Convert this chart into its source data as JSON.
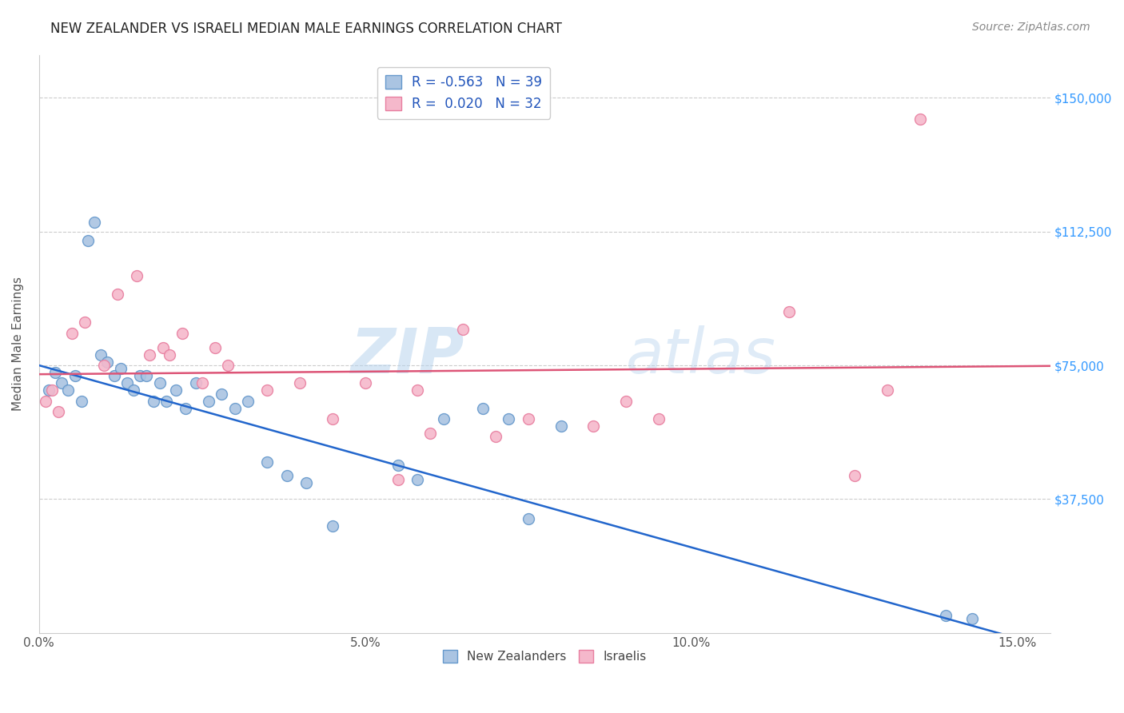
{
  "title": "NEW ZEALANDER VS ISRAELI MEDIAN MALE EARNINGS CORRELATION CHART",
  "source": "Source: ZipAtlas.com",
  "ylabel": "Median Male Earnings",
  "xlabel_vals": [
    0.0,
    5.0,
    10.0,
    15.0
  ],
  "ytick_labels": [
    "$37,500",
    "$75,000",
    "$112,500",
    "$150,000"
  ],
  "ytick_vals": [
    37500,
    75000,
    112500,
    150000
  ],
  "watermark_zip": "ZIP",
  "watermark_atlas": "atlas",
  "nz_color": "#aac4e2",
  "nz_edge": "#6699cc",
  "il_color": "#f5b8cb",
  "il_edge": "#e87fa0",
  "nz_line_color": "#2266cc",
  "il_line_color": "#dd5577",
  "legend_text_color": "#2255bb",
  "nz_x": [
    0.15,
    0.25,
    0.35,
    0.45,
    0.55,
    0.65,
    0.75,
    0.85,
    0.95,
    1.05,
    1.15,
    1.25,
    1.35,
    1.45,
    1.55,
    1.65,
    1.75,
    1.85,
    1.95,
    2.1,
    2.25,
    2.4,
    2.6,
    2.8,
    3.0,
    3.2,
    3.5,
    3.8,
    4.1,
    4.5,
    5.5,
    5.8,
    6.2,
    6.8,
    7.2,
    7.5,
    8.0,
    13.9,
    14.3
  ],
  "nz_y": [
    68000,
    73000,
    70000,
    68000,
    72000,
    65000,
    110000,
    115000,
    78000,
    76000,
    72000,
    74000,
    70000,
    68000,
    72000,
    72000,
    65000,
    70000,
    65000,
    68000,
    63000,
    70000,
    65000,
    67000,
    63000,
    65000,
    48000,
    44000,
    42000,
    30000,
    47000,
    43000,
    60000,
    63000,
    60000,
    32000,
    58000,
    5000,
    4000
  ],
  "il_x": [
    0.1,
    0.2,
    0.3,
    0.5,
    0.7,
    1.0,
    1.2,
    1.5,
    1.7,
    1.9,
    2.0,
    2.2,
    2.5,
    2.7,
    2.9,
    3.5,
    4.0,
    4.5,
    5.0,
    5.5,
    5.8,
    6.0,
    6.5,
    7.0,
    7.5,
    8.5,
    9.0,
    9.5,
    11.5,
    12.5,
    13.0,
    13.5
  ],
  "il_y": [
    65000,
    68000,
    62000,
    84000,
    87000,
    75000,
    95000,
    100000,
    78000,
    80000,
    78000,
    84000,
    70000,
    80000,
    75000,
    68000,
    70000,
    60000,
    70000,
    43000,
    68000,
    56000,
    85000,
    55000,
    60000,
    58000,
    65000,
    60000,
    90000,
    44000,
    68000,
    144000
  ],
  "nz_intercept": 75000,
  "nz_slope": -5100,
  "il_intercept": 72500,
  "il_slope": 150,
  "xmin": 0.0,
  "xmax": 15.5,
  "ymin": 0,
  "ymax": 162000,
  "background_color": "#ffffff",
  "grid_color": "#cccccc",
  "title_color": "#222222",
  "axis_label_color": "#555555",
  "right_tick_color": "#3399ff",
  "marker_size": 100,
  "title_fontsize": 12,
  "source_fontsize": 10
}
